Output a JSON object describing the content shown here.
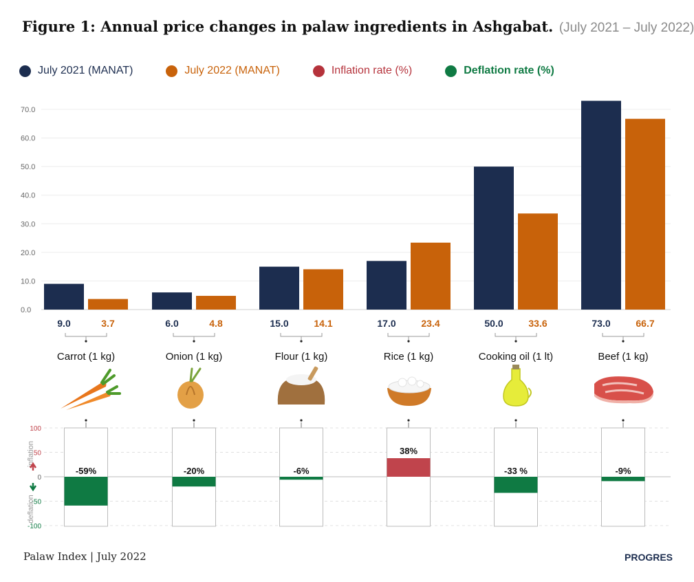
{
  "header": {
    "title": "Figure 1: Annual price changes in palaw ingredients in Ashgabat.",
    "subtitle": "(July 2021 – July 2022)"
  },
  "legend": [
    {
      "label": "July 2021 (MANAT)",
      "color": "#1c2d4f"
    },
    {
      "label": "July 2022 (MANAT)",
      "color": "#c8620a"
    },
    {
      "label": "Inflation rate (%)",
      "color": "#b5323b"
    },
    {
      "label": "Deflation rate (%)",
      "color": "#0f7a43"
    }
  ],
  "footer": {
    "source": "Palaw Index | July 2022",
    "brand": "PROGRES"
  },
  "colors": {
    "jul2021": "#1c2d4f",
    "jul2022": "#c8620a",
    "inflation": "#c0444c",
    "deflation": "#0f7a43"
  },
  "chart_data": [
    {
      "type": "bar",
      "categories": [
        "Carrot (1 kg)",
        "Onion (1 kg)",
        "Flour (1 kg)",
        "Rice (1 kg)",
        "Cooking oil (1 lt)",
        "Beef (1 kg)"
      ],
      "series": [
        {
          "name": "July 2021 (MANAT)",
          "values": [
            9.0,
            6.0,
            15.0,
            17.0,
            50.0,
            73.0
          ],
          "labels": [
            "9.0",
            "6.0",
            "15.0",
            "17.0",
            "50.0",
            "73.0"
          ]
        },
        {
          "name": "July 2022 (MANAT)",
          "values": [
            3.7,
            4.8,
            14.1,
            23.4,
            33.6,
            66.7
          ],
          "labels": [
            "3.7",
            "4.8",
            "14.1",
            "23.4",
            "33.6",
            "66.7"
          ]
        }
      ],
      "ylim": [
        0,
        70
      ],
      "yticks": [
        "0.0",
        "10.0",
        "20.0",
        "30.0",
        "40.0",
        "50.0",
        "60.0",
        "70.0"
      ],
      "grid": true
    },
    {
      "type": "bar",
      "categories": [
        "Carrot (1 kg)",
        "Onion (1 kg)",
        "Flour (1 kg)",
        "Rice (1 kg)",
        "Cooking oil (1 lt)",
        "Beef (1 kg)"
      ],
      "series": [
        {
          "name": "Inflation rate (%) / Deflation rate (%)",
          "values": [
            -59,
            -20,
            -6,
            38,
            -33,
            -9
          ],
          "labels": [
            "-59%",
            "-20%",
            "-6%",
            "38%",
            "-33 %",
            "-9%"
          ]
        }
      ],
      "ylim": [
        -100,
        100
      ],
      "yticks": [
        "100",
        "50",
        "0",
        "-50",
        "-100"
      ],
      "ylabel_up": "inflation",
      "ylabel_down": "deflation",
      "grid": true
    }
  ],
  "icons": [
    "carrot-icon",
    "onion-icon",
    "flour-sack-icon",
    "rice-bowl-icon",
    "oil-bottle-icon",
    "beef-steak-icon"
  ]
}
